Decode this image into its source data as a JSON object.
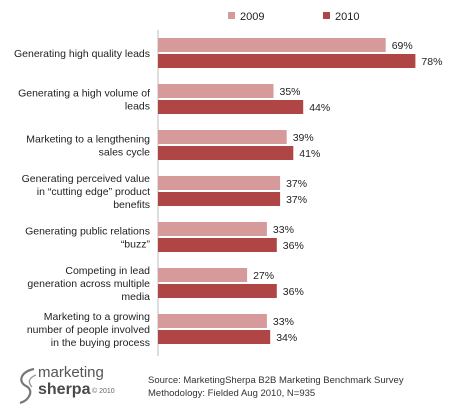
{
  "chart_data": {
    "type": "bar",
    "orientation": "horizontal",
    "categories": [
      [
        "Generating high quality leads"
      ],
      [
        "Generating a high volume of",
        "leads"
      ],
      [
        "Marketing to a lengthening",
        "sales cycle"
      ],
      [
        "Generating perceived value",
        "in “cutting edge” product",
        "benefits"
      ],
      [
        "Generating public relations",
        "“buzz”"
      ],
      [
        "Competing in lead",
        "generation across multiple",
        "media"
      ],
      [
        "Marketing to a growing",
        "number of people involved",
        "in the buying process"
      ]
    ],
    "series": [
      {
        "name": "2009",
        "color": "#d69a9a",
        "values": [
          69,
          35,
          39,
          37,
          33,
          27,
          33
        ]
      },
      {
        "name": "2010",
        "color": "#b04545",
        "values": [
          78,
          44,
          41,
          37,
          36,
          36,
          34
        ]
      }
    ],
    "value_suffix": "%",
    "xlim": [
      0,
      100
    ],
    "legend": "top-center",
    "grid": false
  },
  "source": {
    "line1": "Source: MarketingSherpa B2B Marketing Benchmark Survey",
    "line2": "Methodology: Fielded Aug 2010, N=935"
  },
  "logo": {
    "word1": "marketing",
    "word2": "sherpa",
    "copyright": "© 2010"
  }
}
